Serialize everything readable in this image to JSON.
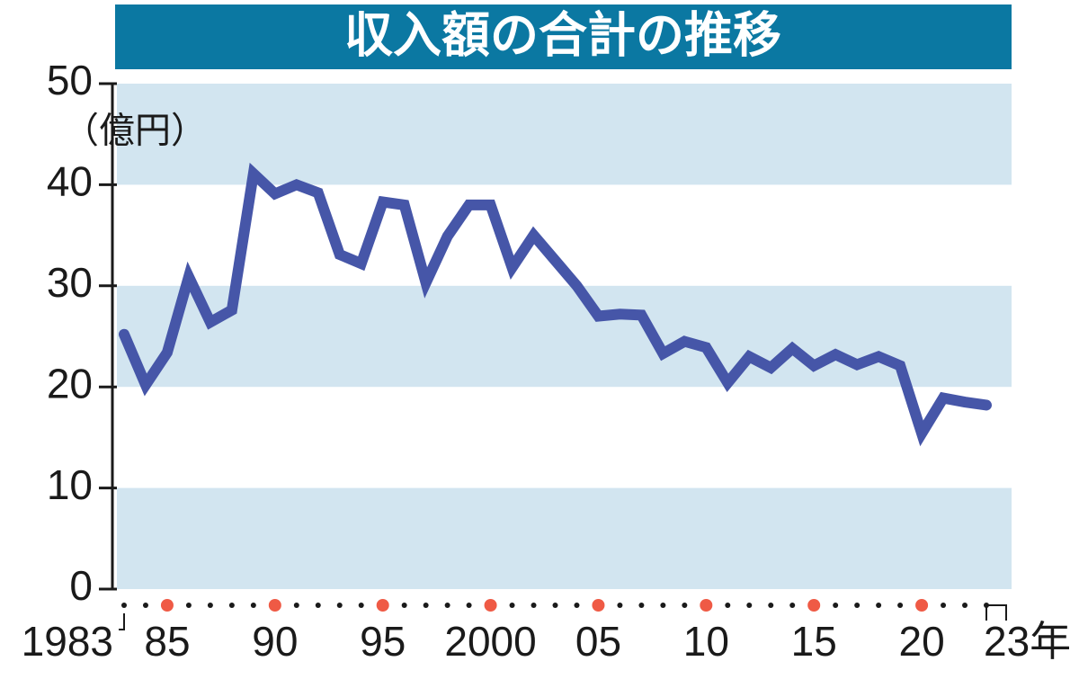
{
  "chart_data": {
    "type": "line",
    "title": "収入額の合計の推移",
    "y_label": "（億円）",
    "x": [
      1983,
      1984,
      1985,
      1986,
      1987,
      1988,
      1989,
      1990,
      1991,
      1992,
      1993,
      1994,
      1995,
      1996,
      1997,
      1998,
      1999,
      2000,
      2001,
      2002,
      2003,
      2004,
      2005,
      2006,
      2007,
      2008,
      2009,
      2010,
      2011,
      2012,
      2013,
      2014,
      2015,
      2016,
      2017,
      2018,
      2019,
      2020,
      2021,
      2022,
      2023
    ],
    "values": [
      25.2,
      20.2,
      23.4,
      30.9,
      26.4,
      27.6,
      41.1,
      39.1,
      40.0,
      39.2,
      33.1,
      32.2,
      38.3,
      38.0,
      30.3,
      34.9,
      38.0,
      38.0,
      31.8,
      35.0,
      32.5,
      30.0,
      27.0,
      27.2,
      27.1,
      23.3,
      24.5,
      23.9,
      20.4,
      23.0,
      21.9,
      23.8,
      22.1,
      23.2,
      22.2,
      23.0,
      22.1,
      15.4,
      18.9,
      18.5,
      18.2
    ],
    "color": "#4656a8",
    "xlim": [
      1983,
      2023
    ],
    "xticks": [
      {
        "value": 1983,
        "label": "1983"
      },
      {
        "value": 1985,
        "label": "85"
      },
      {
        "value": 1990,
        "label": "90"
      },
      {
        "value": 1995,
        "label": "95"
      },
      {
        "value": 2000,
        "label": "2000"
      },
      {
        "value": 2005,
        "label": "05"
      },
      {
        "value": 2010,
        "label": "10"
      },
      {
        "value": 2015,
        "label": "15"
      },
      {
        "value": 2020,
        "label": "20"
      },
      {
        "value": 2023,
        "label": "23年"
      }
    ],
    "ylim": [
      0,
      50
    ],
    "yticks": [
      0,
      10,
      20,
      30,
      40,
      50
    ]
  }
}
